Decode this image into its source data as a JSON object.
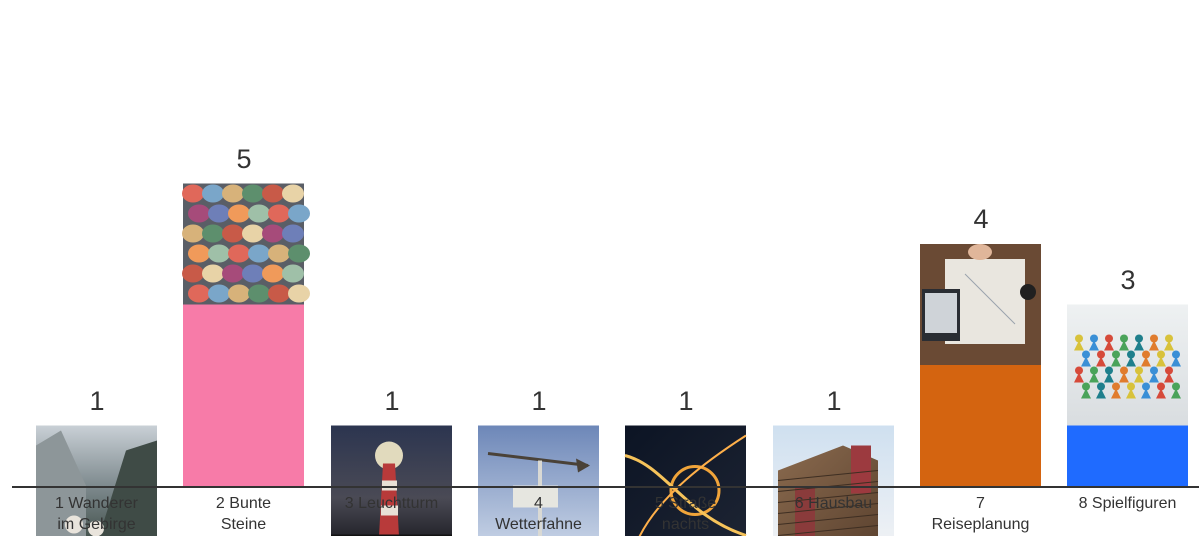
{
  "chart_data": {
    "type": "bar",
    "categories": [
      "1 Wanderer\nim Gebirge",
      "2 Bunte\nSteine",
      "3 Leuchtturm",
      "4\nWetterfahne",
      "5 Straße\nnachts",
      "6 Hausbau",
      "7\nReiseplanung",
      "8 Spielfiguren"
    ],
    "values": [
      1,
      5,
      1,
      1,
      1,
      1,
      4,
      3
    ],
    "value_labels": [
      "1",
      "5",
      "1",
      "1",
      "1",
      "1",
      "4",
      "3"
    ],
    "bar_colors": [
      "#1f6bff",
      "#f77ba8",
      "#ff3b3b",
      "#ffc133",
      "#06d083",
      "#9b9bf2",
      "#d46410",
      "#1f6bff"
    ],
    "image_icons": [
      "mountain-hikers-image",
      "colorful-pebbles-image",
      "lighthouse-night-image",
      "weather-vane-image",
      "night-road-interchange-image",
      "house-construction-image",
      "travel-map-planning-image",
      "game-pieces-image"
    ],
    "title": "",
    "xlabel": "",
    "ylabel": "",
    "ylim": [
      0,
      5
    ],
    "grid": false,
    "legend": "none"
  },
  "theme": {
    "axis_color": "#333333",
    "text_color": "#333333"
  }
}
